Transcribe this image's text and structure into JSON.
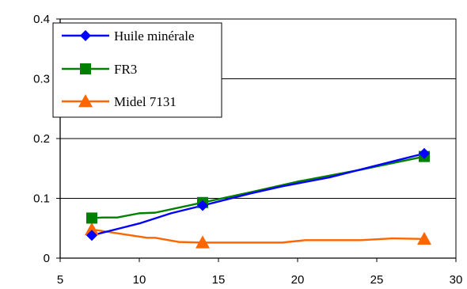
{
  "chart_data": {
    "type": "line",
    "title": "",
    "xlabel": "",
    "ylabel": "",
    "xlim": [
      5,
      30
    ],
    "ylim": [
      0,
      0.4
    ],
    "x_ticks": [
      "5",
      "10",
      "15",
      "20",
      "25",
      "30"
    ],
    "y_ticks": [
      "0",
      "0.1",
      "0.2",
      "0.3",
      "0.4"
    ],
    "grid": "horizontal",
    "legend_position": "top-left",
    "series": [
      {
        "name": "Huile minérale",
        "color": "#0000ff",
        "marker": "diamond",
        "x": [
          7,
          14,
          28
        ],
        "y": [
          0.038,
          0.088,
          0.175
        ],
        "line_x": [
          7,
          8.5,
          10,
          12,
          14,
          17,
          19,
          22,
          25,
          28
        ],
        "line_y": [
          0.038,
          0.048,
          0.058,
          0.075,
          0.088,
          0.108,
          0.12,
          0.135,
          0.155,
          0.175
        ]
      },
      {
        "name": "FR3",
        "color": "#008000",
        "marker": "square",
        "x": [
          7,
          14,
          28
        ],
        "y": [
          0.067,
          0.093,
          0.17
        ],
        "line_x": [
          7,
          7.7,
          8.6,
          10,
          11,
          14,
          17,
          20,
          24,
          28
        ],
        "line_y": [
          0.067,
          0.068,
          0.068,
          0.075,
          0.076,
          0.093,
          0.11,
          0.128,
          0.148,
          0.17
        ]
      },
      {
        "name": "Midel 7131",
        "color": "#ff6600",
        "marker": "triangle",
        "x": [
          7,
          14,
          28
        ],
        "y": [
          0.048,
          0.026,
          0.032
        ],
        "line_x": [
          7,
          9,
          10.5,
          11,
          12.5,
          14,
          16,
          19,
          20.5,
          24,
          26,
          28
        ],
        "line_y": [
          0.048,
          0.04,
          0.034,
          0.034,
          0.027,
          0.026,
          0.026,
          0.026,
          0.03,
          0.03,
          0.033,
          0.032
        ]
      }
    ]
  }
}
